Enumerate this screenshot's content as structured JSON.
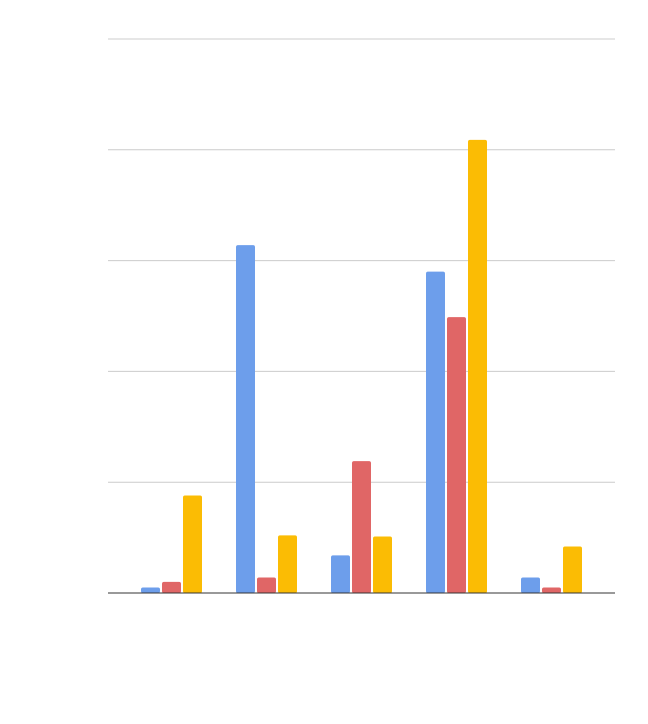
{
  "chart_data": {
    "type": "bar",
    "categories": [
      null,
      null,
      null,
      null,
      null
    ],
    "series": [
      {
        "color": "#6d9eeb",
        "values": [
          0.05,
          3.14,
          0.34,
          2.9,
          0.14
        ]
      },
      {
        "color": "#e06666",
        "values": [
          0.1,
          0.14,
          1.19,
          2.49,
          0.05
        ]
      },
      {
        "color": "#fbbc04",
        "values": [
          0.88,
          0.52,
          0.51,
          4.09,
          0.42
        ]
      }
    ],
    "ylim": [
      0,
      5
    ],
    "yticks": [
      0,
      1,
      2,
      3,
      4,
      5
    ],
    "grid": true
  }
}
